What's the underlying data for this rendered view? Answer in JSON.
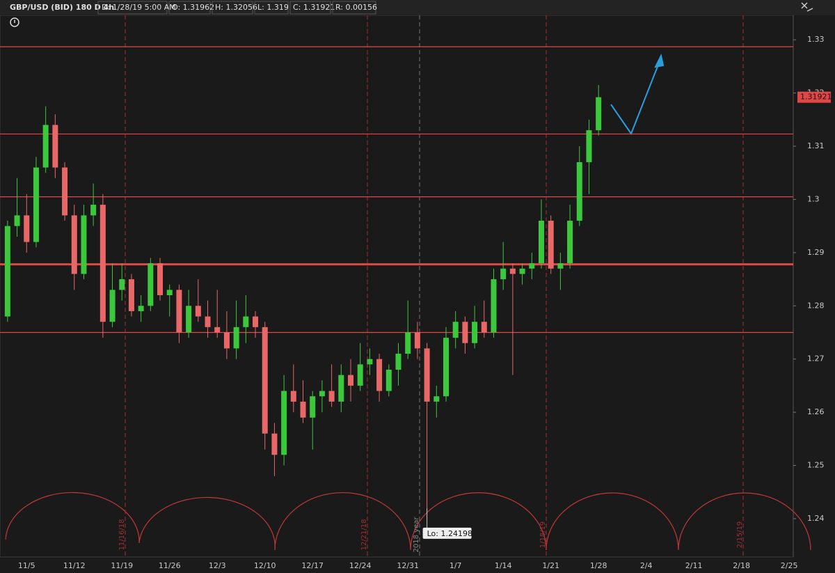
{
  "header": {
    "symbol": "GBP/USD (BID) 180 D 4h",
    "date": "D: 1/28/19 5:00 AM",
    "open": "O: 1.31962",
    "high": "H: 1.32056",
    "low": "L: 1.319",
    "close": "C: 1.31921",
    "range": "R: 0.00156"
  },
  "chart_data": {
    "type": "candlestick",
    "categories": [
      null,
      null,
      "11/5",
      null,
      null,
      null,
      null,
      "11/12",
      null,
      null,
      null,
      null,
      "11/19",
      null,
      null,
      null,
      null,
      "11/26",
      null,
      null,
      null,
      null,
      "12/3",
      null,
      null,
      null,
      null,
      "12/10",
      null,
      null,
      null,
      null,
      "12/17",
      null,
      null,
      null,
      null,
      "12/24",
      null,
      null,
      null,
      null,
      "12/31",
      null,
      null,
      null,
      null,
      "1/7",
      null,
      null,
      null,
      null,
      "1/14",
      null,
      null,
      null,
      null,
      "1/21",
      null,
      null,
      null,
      null,
      "1/28",
      null,
      null,
      null,
      null,
      "2/4",
      null,
      null,
      null,
      null,
      "2/11",
      null,
      null,
      null,
      null,
      "2/18",
      null,
      null,
      null,
      null,
      "2/25"
    ],
    "open": [
      1.278,
      1.295,
      1.297,
      1.292,
      1.306,
      1.314,
      1.306,
      1.297,
      1.286,
      1.297,
      1.299,
      1.277,
      1.283,
      1.285,
      1.279,
      1.28,
      1.288,
      1.282,
      1.283,
      1.275,
      1.28,
      1.278,
      1.276,
      1.275,
      1.272,
      1.276,
      1.278,
      1.276,
      1.256,
      1.252,
      1.264,
      1.262,
      1.259,
      1.263,
      1.264,
      1.262,
      1.267,
      1.265,
      1.269,
      1.27,
      1.264,
      1.268,
      1.271,
      1.275,
      1.272,
      1.262,
      1.263,
      1.274,
      1.277,
      1.273,
      1.277,
      1.275,
      1.285,
      1.287,
      1.286,
      1.287,
      1.288,
      1.296,
      1.287,
      1.288,
      1.296,
      1.307,
      1.313,
      null,
      null,
      null,
      null,
      null,
      null,
      null,
      null,
      null,
      null,
      null,
      null,
      null,
      null,
      null,
      null,
      null,
      null,
      null,
      null
    ],
    "high": [
      1.296,
      1.304,
      1.301,
      1.308,
      1.3175,
      1.316,
      1.307,
      1.299,
      1.299,
      1.303,
      1.301,
      1.288,
      1.288,
      1.286,
      1.282,
      1.289,
      1.289,
      1.284,
      1.284,
      1.283,
      1.285,
      1.281,
      1.283,
      1.279,
      1.281,
      1.282,
      1.279,
      1.277,
      1.258,
      1.267,
      1.269,
      1.266,
      1.264,
      1.266,
      1.269,
      1.269,
      1.27,
      1.273,
      1.272,
      1.271,
      1.269,
      1.273,
      1.281,
      1.277,
      1.273,
      1.265,
      1.276,
      1.279,
      1.278,
      1.28,
      1.281,
      1.287,
      1.292,
      1.288,
      1.288,
      1.29,
      1.3,
      1.297,
      1.29,
      1.299,
      1.31,
      1.315,
      1.3215,
      null,
      null,
      null,
      null,
      null,
      null,
      null,
      null,
      null,
      null,
      null,
      null,
      null,
      null,
      null,
      null,
      null,
      null,
      null,
      null
    ],
    "low": [
      1.277,
      1.293,
      1.29,
      1.291,
      1.305,
      1.304,
      1.296,
      1.283,
      1.285,
      1.295,
      1.274,
      1.276,
      1.281,
      1.278,
      1.277,
      1.279,
      1.281,
      1.278,
      1.273,
      1.274,
      1.277,
      1.274,
      1.274,
      1.27,
      1.27,
      1.273,
      1.274,
      1.253,
      1.248,
      1.25,
      1.26,
      1.258,
      1.253,
      1.26,
      1.261,
      1.26,
      1.262,
      1.264,
      1.267,
      1.262,
      1.263,
      1.265,
      1.27,
      1.27,
      1.24198,
      1.259,
      1.262,
      1.272,
      1.271,
      1.272,
      1.274,
      1.274,
      1.283,
      1.267,
      1.284,
      1.285,
      1.287,
      1.286,
      1.283,
      1.287,
      1.295,
      1.301,
      1.312,
      null,
      null,
      null,
      null,
      null,
      null,
      null,
      null,
      null,
      null,
      null,
      null,
      null,
      null,
      null,
      null,
      null,
      null,
      null,
      null
    ],
    "close": [
      1.295,
      1.297,
      1.292,
      1.306,
      1.314,
      1.306,
      1.297,
      1.286,
      1.297,
      1.299,
      1.277,
      1.283,
      1.285,
      1.279,
      1.28,
      1.288,
      1.282,
      1.283,
      1.275,
      1.28,
      1.278,
      1.276,
      1.275,
      1.272,
      1.276,
      1.278,
      1.276,
      1.256,
      1.252,
      1.264,
      1.262,
      1.259,
      1.263,
      1.264,
      1.262,
      1.267,
      1.265,
      1.269,
      1.27,
      1.264,
      1.268,
      1.271,
      1.275,
      1.272,
      1.262,
      1.263,
      1.274,
      1.277,
      1.273,
      1.277,
      1.275,
      1.285,
      1.287,
      1.286,
      1.287,
      1.288,
      1.296,
      1.287,
      1.288,
      1.296,
      1.307,
      1.313,
      1.31921,
      null,
      null,
      null,
      null,
      null,
      null,
      null,
      null,
      null,
      null,
      null,
      null,
      null,
      null,
      null,
      null,
      null,
      null,
      null,
      null
    ],
    "up_color": "#3cc83c",
    "down_color": "#e86868",
    "ylim": [
      1.2328,
      1.3346
    ],
    "yticks": [
      1.24,
      1.25,
      1.26,
      1.27,
      1.28,
      1.29,
      1.3,
      1.31,
      1.32,
      1.33
    ],
    "levels": [
      1.3287,
      1.3123,
      1.3005,
      1.2878,
      1.275
    ],
    "level_color": "#e04848",
    "low_label": "Lo: 1.24198",
    "markers": [
      "11/16/18",
      "12/21/18",
      "2018 year",
      "1/18/19",
      "2/15/19"
    ]
  }
}
